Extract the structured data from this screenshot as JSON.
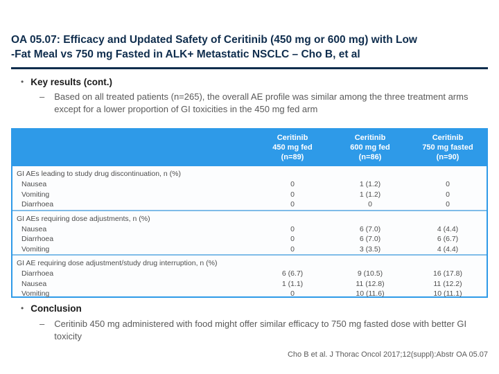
{
  "slide": {
    "title_line1": "OA 05.07: Efficacy and Updated Safety of Ceritinib (450 mg or 600 mg) with Low",
    "title_line2": "-Fat Meal vs 750 mg Fasted in ALK+ Metastatic NSCLC – Cho B, et al",
    "bullet_glyph": "•",
    "dash_glyph": "–",
    "citation": "Cho B et al. J Thorac Oncol 2017;12(suppl):Abstr OA 05.07"
  },
  "key_results": {
    "heading": "Key results (cont.)",
    "body": "Based on all treated patients (n=265), the overall AE profile was similar among the three treatment arms except for a lower proportion of GI toxicities in the 450 mg fed arm"
  },
  "conclusion": {
    "heading": "Conclusion",
    "body": "Ceritinib 450 mg administered with food might offer similar efficacy to 750 mg fasted dose with better GI toxicity"
  },
  "table": {
    "columns": [
      {
        "line1": "Ceritinib",
        "line2": "450 mg fed",
        "line3": "(n=89)"
      },
      {
        "line1": "Ceritinib",
        "line2": "600 mg fed",
        "line3": "(n=86)"
      },
      {
        "line1": "Ceritinib",
        "line2": "750 mg fasted",
        "line3": "(n=90)"
      }
    ],
    "groups": [
      {
        "header": "GI AEs leading to study drug discontinuation, n (%)",
        "rows": [
          {
            "label": "Nausea",
            "values": [
              "0",
              "1 (1.2)",
              "0"
            ]
          },
          {
            "label": "Vomiting",
            "values": [
              "0",
              "1 (1.2)",
              "0"
            ]
          },
          {
            "label": "Diarrhoea",
            "values": [
              "0",
              "0",
              "0"
            ]
          }
        ]
      },
      {
        "header": "GI AEs requiring dose adjustments, n (%)",
        "rows": [
          {
            "label": "Nausea",
            "values": [
              "0",
              "6 (7.0)",
              "4 (4.4)"
            ]
          },
          {
            "label": "Diarrhoea",
            "values": [
              "0",
              "6 (7.0)",
              "6 (6.7)"
            ]
          },
          {
            "label": "Vomiting",
            "values": [
              "0",
              "3 (3.5)",
              "4 (4.4)"
            ]
          }
        ]
      },
      {
        "header": "GI AE requiring dose adjustment/study drug interruption, n (%)",
        "rows": [
          {
            "label": "Diarrhoea",
            "values": [
              "6 (6.7)",
              "9 (10.5)",
              "16 (17.8)"
            ]
          },
          {
            "label": "Nausea",
            "values": [
              "1 (1.1)",
              "11 (12.8)",
              "11 (12.2)"
            ]
          },
          {
            "label": "Vomiting",
            "values": [
              "0",
              "10 (11.6)",
              "10 (11.1)"
            ]
          }
        ]
      }
    ]
  },
  "colors": {
    "title_navy": "#0f2d4d",
    "table_header_blue": "#2e9ae8",
    "separator_blue": "#7fbce8",
    "body_gray": "#595959",
    "table_text_gray": "#4d4d4d"
  }
}
